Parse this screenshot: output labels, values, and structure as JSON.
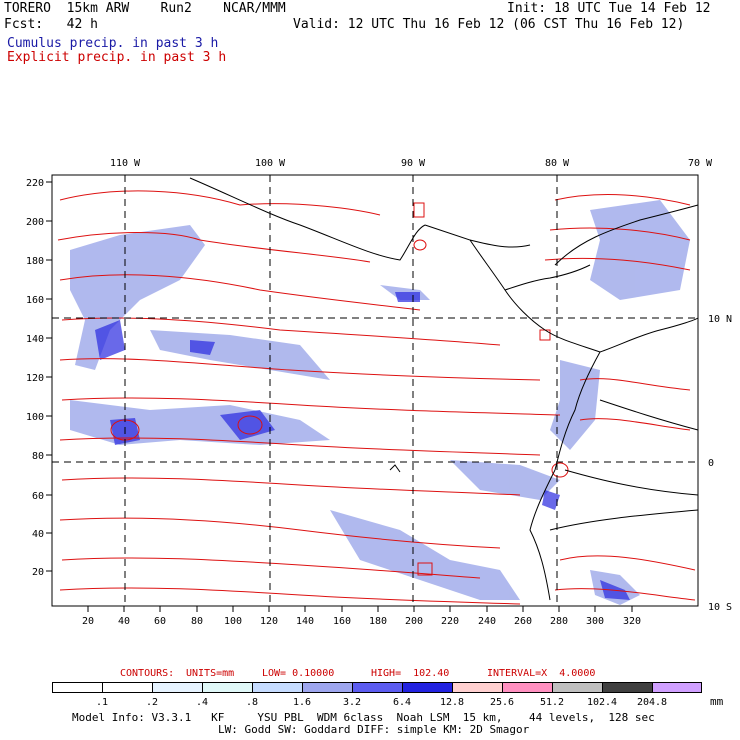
{
  "header": {
    "left1": "TORERO  15km ARW    Run2    NCAR/MMM",
    "right1": "Init: 18 UTC Tue 14 Feb 12",
    "left2": "Fcst:   42 h",
    "right2": "Valid: 12 UTC Thu 16 Feb 12 (06 CST Thu 16 Feb 12)",
    "cumulus": "Cumulus precip. in past 3 h",
    "explicit": "Explicit precip. in past 3 h"
  },
  "axes": {
    "lon_labels": [
      "110 W",
      "100 W",
      "90 W",
      "80 W",
      "70 W"
    ],
    "lat_labels": [
      "10 N",
      "0",
      "10 S"
    ],
    "x_ticks": [
      "20",
      "40",
      "60",
      "80",
      "100",
      "120",
      "140",
      "160",
      "180",
      "200",
      "220",
      "240",
      "260",
      "280",
      "300",
      "320"
    ],
    "y_ticks": [
      "20",
      "40",
      "60",
      "80",
      "100",
      "120",
      "140",
      "160",
      "180",
      "200",
      "220"
    ]
  },
  "contours": {
    "label": "CONTOURS:",
    "units": "UNITS=mm",
    "low": "LOW= 0.10000",
    "high": "HIGH=  102.40",
    "interval": "INTERVAL=X  4.0000"
  },
  "colorbar": {
    "labels": [
      ".1",
      ".2",
      ".4",
      ".8",
      "1.6",
      "3.2",
      "6.4",
      "12.8",
      "25.6",
      "51.2",
      "102.4",
      "204.8"
    ],
    "unit": "mm",
    "colors": [
      "#ffffff",
      "#ffffff",
      "#e6f3ff",
      "#e0f8f8",
      "#c6dcff",
      "#9ea6ee",
      "#5c5cf0",
      "#2222e0",
      "#ffd0d0",
      "#ff90c0",
      "#bfbfbf",
      "#404040",
      "#d0a0ff"
    ]
  },
  "footer": {
    "line1": "Model Info: V3.3.1   KF     YSU PBL  WDM 6class  Noah LSM  15 km,    44 levels,  128 sec",
    "line2": "LW: Godd SW: Goddard DIFF: simple KM: 2D Smagor"
  },
  "colors": {
    "cumulus": "#5566dd",
    "explicit": "#dd0000",
    "coast": "#000000",
    "grid": "#000000"
  }
}
